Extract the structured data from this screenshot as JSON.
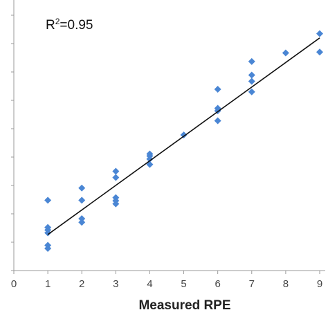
{
  "chart_data": {
    "type": "scatter",
    "title": "",
    "xlabel": "Measured RPE",
    "ylabel": "",
    "xlim": [
      0,
      9
    ],
    "ylim": [
      0,
      9
    ],
    "x_ticks": [
      "0",
      "1",
      "2",
      "3",
      "4",
      "5",
      "6",
      "7",
      "8",
      "9"
    ],
    "grid": false,
    "legend": "none",
    "annotation": {
      "prefix": "R",
      "superscript": "2",
      "suffix": "=0.95"
    },
    "marker_color": "#4a86d4",
    "fit_line_color": "#111111",
    "series": [
      {
        "marker": "diamond",
        "points": [
          {
            "x": 1,
            "y": 2.48
          },
          {
            "x": 1,
            "y": 1.52
          },
          {
            "x": 1,
            "y": 1.43
          },
          {
            "x": 1,
            "y": 1.33
          },
          {
            "x": 1,
            "y": 0.89
          },
          {
            "x": 1,
            "y": 0.78
          },
          {
            "x": 2,
            "y": 2.91
          },
          {
            "x": 2,
            "y": 2.48
          },
          {
            "x": 2,
            "y": 1.83
          },
          {
            "x": 2,
            "y": 1.7
          },
          {
            "x": 3,
            "y": 3.5
          },
          {
            "x": 3,
            "y": 3.28
          },
          {
            "x": 3,
            "y": 2.57
          },
          {
            "x": 3,
            "y": 2.46
          },
          {
            "x": 3,
            "y": 2.35
          },
          {
            "x": 4,
            "y": 4.11
          },
          {
            "x": 4,
            "y": 4.04
          },
          {
            "x": 4,
            "y": 3.93
          },
          {
            "x": 4,
            "y": 3.74
          },
          {
            "x": 5,
            "y": 4.78
          },
          {
            "x": 6,
            "y": 6.39
          },
          {
            "x": 6,
            "y": 5.72
          },
          {
            "x": 6,
            "y": 5.63
          },
          {
            "x": 6,
            "y": 5.28
          },
          {
            "x": 7,
            "y": 7.37
          },
          {
            "x": 7,
            "y": 6.89
          },
          {
            "x": 7,
            "y": 6.67
          },
          {
            "x": 7,
            "y": 6.3
          },
          {
            "x": 8,
            "y": 7.67
          },
          {
            "x": 9,
            "y": 8.35
          },
          {
            "x": 9,
            "y": 7.7
          }
        ]
      }
    ],
    "trendline": {
      "x_start": 1,
      "y_start": 1.27,
      "x_end": 9,
      "y_end": 8.2
    }
  }
}
